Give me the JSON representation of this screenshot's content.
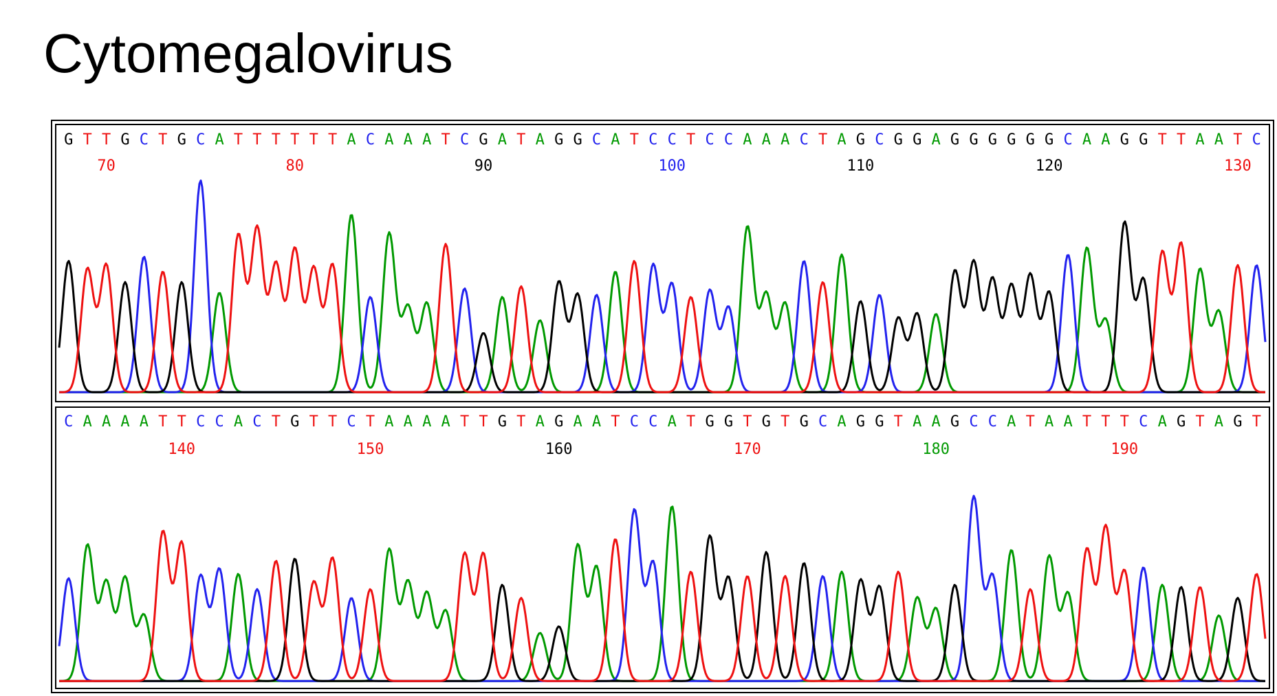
{
  "page": {
    "title": "Cytomegalovirus"
  },
  "colors": {
    "A": "#009900",
    "C": "#2222ee",
    "G": "#000000",
    "T": "#ee1111"
  },
  "chart_data": [
    {
      "type": "line",
      "subtype": "sequencing-chromatogram",
      "title": "",
      "xlabel": "",
      "ylabel": "",
      "position_range": [
        68,
        132
      ],
      "sequence": "GTTGCTGCATTTTTTACAAATCGATAGGCATCCTCCAAACTAGCGGAGGGGGGCAAGGTTAATC",
      "position_labels": [
        70,
        80,
        90,
        100,
        110,
        120,
        130
      ],
      "series": [
        {
          "name": "A",
          "color": "#009900"
        },
        {
          "name": "C",
          "color": "#2222ee"
        },
        {
          "name": "G",
          "color": "#000000"
        },
        {
          "name": "T",
          "color": "#ee1111"
        }
      ],
      "peaks": [
        {
          "pos": 68,
          "base": "G",
          "h": 0.62
        },
        {
          "pos": 69,
          "base": "T",
          "h": 0.58
        },
        {
          "pos": 70,
          "base": "T",
          "h": 0.6
        },
        {
          "pos": 71,
          "base": "G",
          "h": 0.52
        },
        {
          "pos": 72,
          "base": "C",
          "h": 0.64
        },
        {
          "pos": 73,
          "base": "T",
          "h": 0.57
        },
        {
          "pos": 74,
          "base": "G",
          "h": 0.52
        },
        {
          "pos": 75,
          "base": "C",
          "h": 1.0
        },
        {
          "pos": 76,
          "base": "A",
          "h": 0.47
        },
        {
          "pos": 77,
          "base": "T",
          "h": 0.74
        },
        {
          "pos": 78,
          "base": "T",
          "h": 0.77
        },
        {
          "pos": 79,
          "base": "T",
          "h": 0.6
        },
        {
          "pos": 80,
          "base": "T",
          "h": 0.67
        },
        {
          "pos": 81,
          "base": "T",
          "h": 0.58
        },
        {
          "pos": 82,
          "base": "T",
          "h": 0.6
        },
        {
          "pos": 83,
          "base": "A",
          "h": 0.84
        },
        {
          "pos": 84,
          "base": "C",
          "h": 0.45
        },
        {
          "pos": 85,
          "base": "A",
          "h": 0.75
        },
        {
          "pos": 86,
          "base": "A",
          "h": 0.4
        },
        {
          "pos": 87,
          "base": "A",
          "h": 0.42
        },
        {
          "pos": 88,
          "base": "T",
          "h": 0.7
        },
        {
          "pos": 89,
          "base": "C",
          "h": 0.49
        },
        {
          "pos": 90,
          "base": "G",
          "h": 0.28
        },
        {
          "pos": 91,
          "base": "A",
          "h": 0.45
        },
        {
          "pos": 92,
          "base": "T",
          "h": 0.5
        },
        {
          "pos": 93,
          "base": "A",
          "h": 0.34
        },
        {
          "pos": 94,
          "base": "G",
          "h": 0.52
        },
        {
          "pos": 95,
          "base": "G",
          "h": 0.46
        },
        {
          "pos": 96,
          "base": "C",
          "h": 0.46
        },
        {
          "pos": 97,
          "base": "A",
          "h": 0.57
        },
        {
          "pos": 98,
          "base": "T",
          "h": 0.62
        },
        {
          "pos": 99,
          "base": "C",
          "h": 0.6
        },
        {
          "pos": 100,
          "base": "C",
          "h": 0.51
        },
        {
          "pos": 101,
          "base": "T",
          "h": 0.45
        },
        {
          "pos": 102,
          "base": "C",
          "h": 0.48
        },
        {
          "pos": 103,
          "base": "C",
          "h": 0.4
        },
        {
          "pos": 104,
          "base": "A",
          "h": 0.78
        },
        {
          "pos": 105,
          "base": "A",
          "h": 0.46
        },
        {
          "pos": 106,
          "base": "A",
          "h": 0.42
        },
        {
          "pos": 107,
          "base": "C",
          "h": 0.62
        },
        {
          "pos": 108,
          "base": "T",
          "h": 0.52
        },
        {
          "pos": 109,
          "base": "A",
          "h": 0.65
        },
        {
          "pos": 110,
          "base": "G",
          "h": 0.43
        },
        {
          "pos": 111,
          "base": "C",
          "h": 0.46
        },
        {
          "pos": 112,
          "base": "G",
          "h": 0.35
        },
        {
          "pos": 113,
          "base": "G",
          "h": 0.37
        },
        {
          "pos": 114,
          "base": "A",
          "h": 0.37
        },
        {
          "pos": 115,
          "base": "G",
          "h": 0.57
        },
        {
          "pos": 116,
          "base": "G",
          "h": 0.61
        },
        {
          "pos": 117,
          "base": "G",
          "h": 0.53
        },
        {
          "pos": 118,
          "base": "G",
          "h": 0.5
        },
        {
          "pos": 119,
          "base": "G",
          "h": 0.55
        },
        {
          "pos": 120,
          "base": "G",
          "h": 0.47
        },
        {
          "pos": 121,
          "base": "C",
          "h": 0.65
        },
        {
          "pos": 122,
          "base": "A",
          "h": 0.68
        },
        {
          "pos": 123,
          "base": "A",
          "h": 0.34
        },
        {
          "pos": 124,
          "base": "G",
          "h": 0.8
        },
        {
          "pos": 125,
          "base": "G",
          "h": 0.53
        },
        {
          "pos": 126,
          "base": "T",
          "h": 0.66
        },
        {
          "pos": 127,
          "base": "T",
          "h": 0.7
        },
        {
          "pos": 128,
          "base": "A",
          "h": 0.58
        },
        {
          "pos": 129,
          "base": "A",
          "h": 0.38
        },
        {
          "pos": 130,
          "base": "T",
          "h": 0.6
        },
        {
          "pos": 131,
          "base": "C",
          "h": 0.6
        }
      ]
    },
    {
      "type": "line",
      "subtype": "sequencing-chromatogram",
      "title": "",
      "xlabel": "",
      "ylabel": "",
      "position_range": [
        134,
        197
      ],
      "sequence": "CAAAATTCCACTGTTCTAAAATTGTAGAATCCATGGTGTGCAGGTAAGCCATAATTTCAGTAGT",
      "position_labels": [
        140,
        150,
        160,
        170,
        180,
        190
      ],
      "series": [
        {
          "name": "A",
          "color": "#009900"
        },
        {
          "name": "C",
          "color": "#2222ee"
        },
        {
          "name": "G",
          "color": "#000000"
        },
        {
          "name": "T",
          "color": "#ee1111"
        }
      ],
      "peaks": [
        {
          "pos": 134,
          "base": "C",
          "h": 0.47
        },
        {
          "pos": 135,
          "base": "A",
          "h": 0.62
        },
        {
          "pos": 136,
          "base": "A",
          "h": 0.45
        },
        {
          "pos": 137,
          "base": "A",
          "h": 0.47
        },
        {
          "pos": 138,
          "base": "A",
          "h": 0.3
        },
        {
          "pos": 139,
          "base": "T",
          "h": 0.68
        },
        {
          "pos": 140,
          "base": "T",
          "h": 0.63
        },
        {
          "pos": 141,
          "base": "C",
          "h": 0.48
        },
        {
          "pos": 142,
          "base": "C",
          "h": 0.51
        },
        {
          "pos": 143,
          "base": "A",
          "h": 0.49
        },
        {
          "pos": 144,
          "base": "C",
          "h": 0.42
        },
        {
          "pos": 145,
          "base": "T",
          "h": 0.55
        },
        {
          "pos": 146,
          "base": "G",
          "h": 0.56
        },
        {
          "pos": 147,
          "base": "T",
          "h": 0.45
        },
        {
          "pos": 148,
          "base": "T",
          "h": 0.56
        },
        {
          "pos": 149,
          "base": "C",
          "h": 0.38
        },
        {
          "pos": 150,
          "base": "T",
          "h": 0.42
        },
        {
          "pos": 151,
          "base": "A",
          "h": 0.6
        },
        {
          "pos": 152,
          "base": "A",
          "h": 0.45
        },
        {
          "pos": 153,
          "base": "A",
          "h": 0.4
        },
        {
          "pos": 154,
          "base": "A",
          "h": 0.32
        },
        {
          "pos": 155,
          "base": "T",
          "h": 0.58
        },
        {
          "pos": 156,
          "base": "T",
          "h": 0.58
        },
        {
          "pos": 157,
          "base": "G",
          "h": 0.44
        },
        {
          "pos": 158,
          "base": "T",
          "h": 0.38
        },
        {
          "pos": 159,
          "base": "A",
          "h": 0.22
        },
        {
          "pos": 160,
          "base": "G",
          "h": 0.25
        },
        {
          "pos": 161,
          "base": "A",
          "h": 0.62
        },
        {
          "pos": 162,
          "base": "A",
          "h": 0.52
        },
        {
          "pos": 163,
          "base": "T",
          "h": 0.65
        },
        {
          "pos": 164,
          "base": "C",
          "h": 0.78
        },
        {
          "pos": 165,
          "base": "C",
          "h": 0.54
        },
        {
          "pos": 166,
          "base": "A",
          "h": 0.8
        },
        {
          "pos": 167,
          "base": "T",
          "h": 0.5
        },
        {
          "pos": 168,
          "base": "G",
          "h": 0.66
        },
        {
          "pos": 169,
          "base": "G",
          "h": 0.47
        },
        {
          "pos": 170,
          "base": "T",
          "h": 0.48
        },
        {
          "pos": 171,
          "base": "G",
          "h": 0.59
        },
        {
          "pos": 172,
          "base": "T",
          "h": 0.48
        },
        {
          "pos": 173,
          "base": "G",
          "h": 0.54
        },
        {
          "pos": 174,
          "base": "C",
          "h": 0.48
        },
        {
          "pos": 175,
          "base": "A",
          "h": 0.5
        },
        {
          "pos": 176,
          "base": "G",
          "h": 0.46
        },
        {
          "pos": 177,
          "base": "G",
          "h": 0.43
        },
        {
          "pos": 178,
          "base": "T",
          "h": 0.5
        },
        {
          "pos": 179,
          "base": "A",
          "h": 0.38
        },
        {
          "pos": 180,
          "base": "A",
          "h": 0.33
        },
        {
          "pos": 181,
          "base": "G",
          "h": 0.44
        },
        {
          "pos": 182,
          "base": "C",
          "h": 0.84
        },
        {
          "pos": 183,
          "base": "C",
          "h": 0.48
        },
        {
          "pos": 184,
          "base": "A",
          "h": 0.6
        },
        {
          "pos": 185,
          "base": "T",
          "h": 0.42
        },
        {
          "pos": 186,
          "base": "A",
          "h": 0.57
        },
        {
          "pos": 187,
          "base": "A",
          "h": 0.4
        },
        {
          "pos": 188,
          "base": "T",
          "h": 0.6
        },
        {
          "pos": 189,
          "base": "T",
          "h": 0.7
        },
        {
          "pos": 190,
          "base": "T",
          "h": 0.5
        },
        {
          "pos": 191,
          "base": "C",
          "h": 0.52
        },
        {
          "pos": 192,
          "base": "A",
          "h": 0.44
        },
        {
          "pos": 193,
          "base": "G",
          "h": 0.43
        },
        {
          "pos": 194,
          "base": "T",
          "h": 0.43
        },
        {
          "pos": 195,
          "base": "A",
          "h": 0.3
        },
        {
          "pos": 196,
          "base": "G",
          "h": 0.38
        },
        {
          "pos": 197,
          "base": "T",
          "h": 0.49
        }
      ]
    }
  ]
}
